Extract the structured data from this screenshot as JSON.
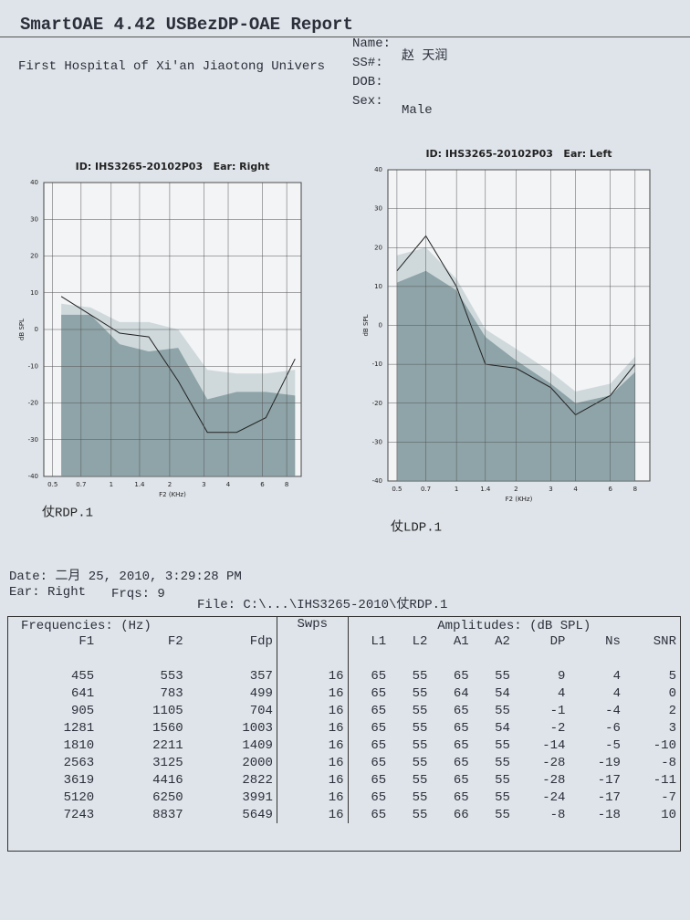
{
  "header": {
    "title": "SmartOAE 4.42 USBezDP-OAE Report",
    "institution": "First Hospital of Xi'an Jiaotong Univers",
    "fields": [
      {
        "label": "Name:",
        "value": "赵 天润"
      },
      {
        "label": "SS#:"
      },
      {
        "label": "DOB:"
      },
      {
        "label": "Sex:",
        "value": "Male"
      }
    ]
  },
  "chart_data": [
    {
      "type": "line",
      "title": "ID: IHS3265-20102P03   Ear: Right",
      "xlabel": "F2 (KHz)",
      "ylabel": "dB SPL",
      "xscale": "log",
      "x": [
        0.553,
        0.783,
        1.105,
        1.56,
        2.211,
        3.125,
        4.416,
        6.25,
        8.837
      ],
      "xlim": [
        0.45,
        9.5
      ],
      "xticks": [
        0.5,
        0.7,
        1,
        1.4,
        2,
        3,
        4,
        6,
        8
      ],
      "ylim": [
        -40,
        40
      ],
      "yticks": [
        -40,
        -30,
        -20,
        -10,
        0,
        10,
        20,
        30,
        40
      ],
      "grid": true,
      "series": [
        {
          "type": "area",
          "color": "#cfd9dc",
          "values": [
            7,
            6,
            2,
            2,
            0,
            -11,
            -12,
            -12,
            -11
          ]
        },
        {
          "type": "area",
          "color": "#8ea4a8",
          "values": [
            4,
            4,
            -4,
            -6,
            -5,
            -19,
            -17,
            -17,
            -18
          ]
        },
        {
          "type": "line",
          "color": "#222222",
          "values": [
            9,
            4,
            -1,
            -2,
            -14,
            -28,
            -28,
            -24,
            -8
          ]
        }
      ],
      "caption": "仗RDP.1"
    },
    {
      "type": "line",
      "title": "ID: IHS3265-20102P03   Ear: Left",
      "xlabel": "F2 (KHz)",
      "ylabel": "dB SPL",
      "xscale": "log",
      "x": [
        0.5,
        0.7,
        1,
        1.4,
        2,
        3,
        4,
        6,
        8
      ],
      "xlim": [
        0.45,
        9.5
      ],
      "xticks": [
        0.5,
        0.7,
        1,
        1.4,
        2,
        3,
        4,
        6,
        8
      ],
      "ylim": [
        -40,
        40
      ],
      "yticks": [
        -40,
        -30,
        -20,
        -10,
        0,
        10,
        20,
        30,
        40
      ],
      "grid": true,
      "series": [
        {
          "type": "area",
          "color": "#cfd9dc",
          "values": [
            18,
            20,
            12,
            -1,
            -6,
            -12,
            -17,
            -15,
            -8
          ]
        },
        {
          "type": "area",
          "color": "#8ea4a8",
          "values": [
            11,
            14,
            9,
            -3,
            -9,
            -15,
            -20,
            -18,
            -12
          ]
        },
        {
          "type": "line",
          "color": "#222222",
          "values": [
            14,
            23,
            10,
            -10,
            -11,
            -16,
            -23,
            -18,
            -10
          ]
        }
      ],
      "caption": "仗LDP.1"
    }
  ],
  "info": {
    "date": "Date: 二月 25, 2010, 3:29:28 PM",
    "ear": "Ear: Right",
    "frqs": "Frqs: 9",
    "file": "File: C:\\...\\IHS3265-2010\\仗RDP.1"
  },
  "table": {
    "group_headers": [
      "Frequencies: (Hz)",
      "Swps",
      "Amplitudes: (dB SPL)"
    ],
    "columns": [
      "F1",
      "F2",
      "Fdp",
      "L1",
      "L2",
      "A1",
      "A2",
      "DP",
      "Ns",
      "SNR"
    ],
    "rows": [
      [
        455,
        553,
        357,
        16,
        65,
        55,
        65,
        55,
        9,
        4,
        5
      ],
      [
        641,
        783,
        499,
        16,
        65,
        55,
        64,
        54,
        4,
        4,
        0
      ],
      [
        905,
        1105,
        704,
        16,
        65,
        55,
        65,
        55,
        -1,
        -4,
        2
      ],
      [
        1281,
        1560,
        1003,
        16,
        65,
        55,
        65,
        54,
        -2,
        -6,
        3
      ],
      [
        1810,
        2211,
        1409,
        16,
        65,
        55,
        65,
        55,
        -14,
        -5,
        -10
      ],
      [
        2563,
        3125,
        2000,
        16,
        65,
        55,
        65,
        55,
        -28,
        -19,
        -8
      ],
      [
        3619,
        4416,
        2822,
        16,
        65,
        55,
        65,
        55,
        -28,
        -17,
        -11
      ],
      [
        5120,
        6250,
        3991,
        16,
        65,
        55,
        65,
        55,
        -24,
        -17,
        -7
      ],
      [
        7243,
        8837,
        5649,
        16,
        65,
        55,
        66,
        55,
        -8,
        -18,
        10
      ]
    ]
  }
}
